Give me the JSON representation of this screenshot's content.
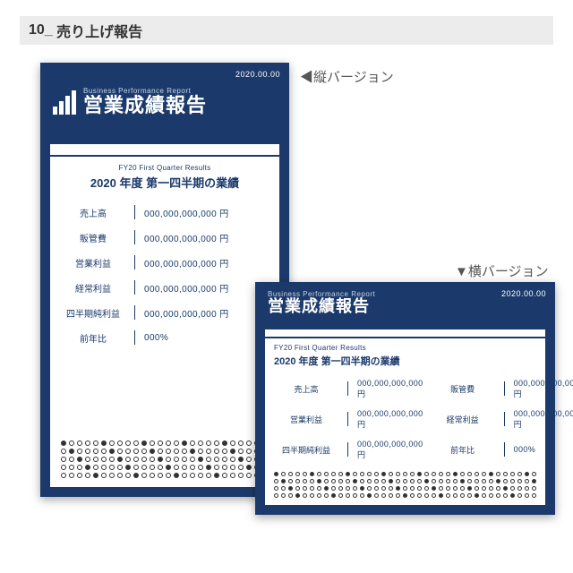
{
  "page": {
    "section_number": "10_",
    "section_title": "売り上げ報告"
  },
  "labels": {
    "portrait_version": "◀縦バージョン",
    "landscape_version": "▼横バージョン"
  },
  "report": {
    "date": "2020.00.00",
    "subtitle_en": "Business Performance Report",
    "title_jp": "営業成績報告",
    "panel_sub_en": "FY20 First Quarter Results",
    "panel_title_jp": "2020 年度 第一四半期の業績",
    "rows": [
      {
        "label": "売上高",
        "value": "000,000,000,000 円"
      },
      {
        "label": "販管費",
        "value": "000,000,000,000 円"
      },
      {
        "label": "営業利益",
        "value": "000,000,000,000 円"
      },
      {
        "label": "経常利益",
        "value": "000,000,000,000 円"
      },
      {
        "label": "四半期純利益",
        "value": "000,000,000,000 円"
      },
      {
        "label": "前年比",
        "value": "000%"
      }
    ],
    "colors": {
      "navy": "#1b3a6b",
      "white": "#ffffff",
      "page_bg": "#ffffff",
      "title_bar": "#ececec"
    },
    "placeholder_dot_lines": 5,
    "placeholder_dots_per_line": 28
  }
}
